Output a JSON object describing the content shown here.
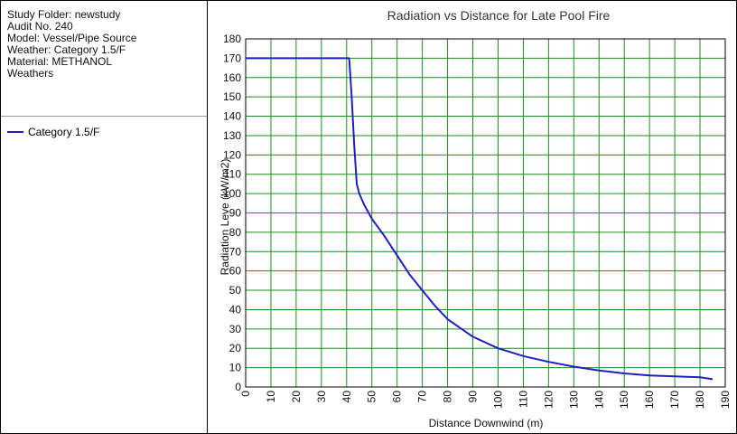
{
  "info": {
    "lines": [
      "Study Folder: newstudy",
      "Audit No. 240",
      "Model: Vessel/Pipe Source",
      "Weather: Category 1.5/F",
      "Material: METHANOL",
      "Weathers"
    ]
  },
  "legend": {
    "label": "Category 1.5/F",
    "color": "#1f1fbf"
  },
  "chart_data": {
    "type": "line",
    "title": "Radiation vs Distance for Late Pool Fire",
    "xlabel": "Distance Downwind (m)",
    "ylabel": "Radiation Leve (kW/m2)",
    "xlim": [
      0,
      190
    ],
    "ylim": [
      0,
      180
    ],
    "xticks": [
      "0",
      "10",
      "20",
      "30",
      "40",
      "50",
      "60",
      "70",
      "80",
      "90",
      "100",
      "110",
      "120",
      "130",
      "140",
      "150",
      "160",
      "170",
      "180",
      "190"
    ],
    "yticks": [
      "0",
      "10",
      "20",
      "30",
      "40",
      "50",
      "60",
      "70",
      "80",
      "90",
      "100",
      "110",
      "120",
      "130",
      "140",
      "150",
      "160",
      "170",
      "180"
    ],
    "grid": true,
    "grid_color": "#1e8c1e",
    "series": [
      {
        "name": "Category 1.5/F",
        "color": "#1f1fbf",
        "x": [
          0,
          41,
          42,
          43,
          44,
          45,
          47,
          50,
          55,
          60,
          65,
          70,
          75,
          80,
          90,
          100,
          110,
          120,
          130,
          140,
          150,
          160,
          170,
          180,
          185
        ],
        "y": [
          170,
          170,
          150,
          125,
          105,
          100,
          94,
          87,
          78,
          68,
          58,
          50,
          42,
          35,
          26,
          20,
          16,
          13,
          10.5,
          8.5,
          7,
          6,
          5.5,
          5,
          4
        ]
      }
    ]
  }
}
